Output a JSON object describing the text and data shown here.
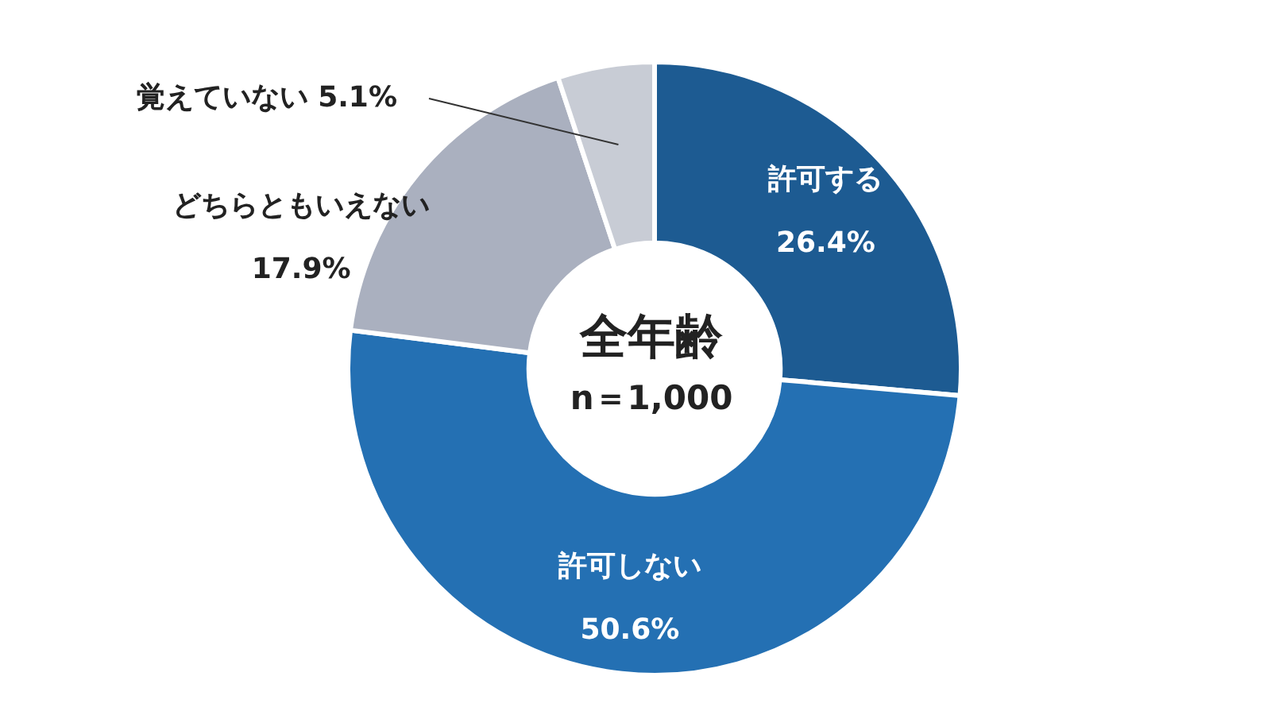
{
  "chart_data": {
    "type": "donut",
    "categories": [
      "許可する",
      "許可しない",
      "どちらともいえない",
      "覚えていない"
    ],
    "values": [
      26.4,
      50.6,
      17.9,
      5.1
    ],
    "value_labels": [
      "26.4%",
      "50.6%",
      "17.9%",
      "5.1%"
    ],
    "colors": [
      "#1d5b92",
      "#2470b3",
      "#aab0bf",
      "#c8ccd5"
    ],
    "annotations": [
      "全年齢",
      "n＝1,000"
    ]
  }
}
